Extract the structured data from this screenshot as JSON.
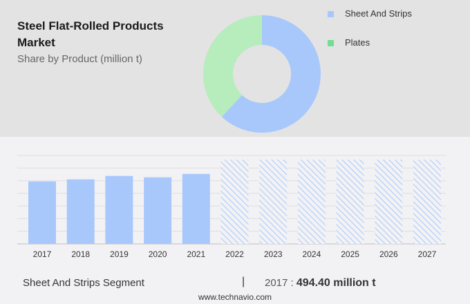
{
  "header": {
    "title": "Steel Flat-Rolled Products Market",
    "subtitle": "Share by Product (million t)"
  },
  "chart_data": [
    {
      "type": "pie",
      "variant": "donut",
      "series": [
        {
          "name": "Sheet And Strips",
          "value": 62,
          "color": "#a8c8fc"
        },
        {
          "name": "Plates",
          "value": 38,
          "color": "#b7ecbc"
        }
      ],
      "legend_colors": [
        "#a8c8fc",
        "#6ee08f"
      ],
      "legend": "right"
    },
    {
      "type": "bar",
      "categories": [
        "2017",
        "2018",
        "2019",
        "2020",
        "2021",
        "2022",
        "2023",
        "2024",
        "2025",
        "2026",
        "2027"
      ],
      "values": [
        494.4,
        511,
        538,
        527,
        554,
        null,
        null,
        null,
        null,
        null,
        null
      ],
      "forecast_categories": [
        "2022",
        "2023",
        "2024",
        "2025",
        "2026",
        "2027"
      ],
      "ylim": [
        0,
        700
      ],
      "grid": true,
      "bar_color": "#a8c8fc",
      "forecast_style": "hatched"
    }
  ],
  "footer": {
    "segment": "Sheet And Strips Segment",
    "separator": "|",
    "year": "2017",
    "colon": " : ",
    "value": "494.40 million t",
    "website": "www.technavio.com"
  }
}
